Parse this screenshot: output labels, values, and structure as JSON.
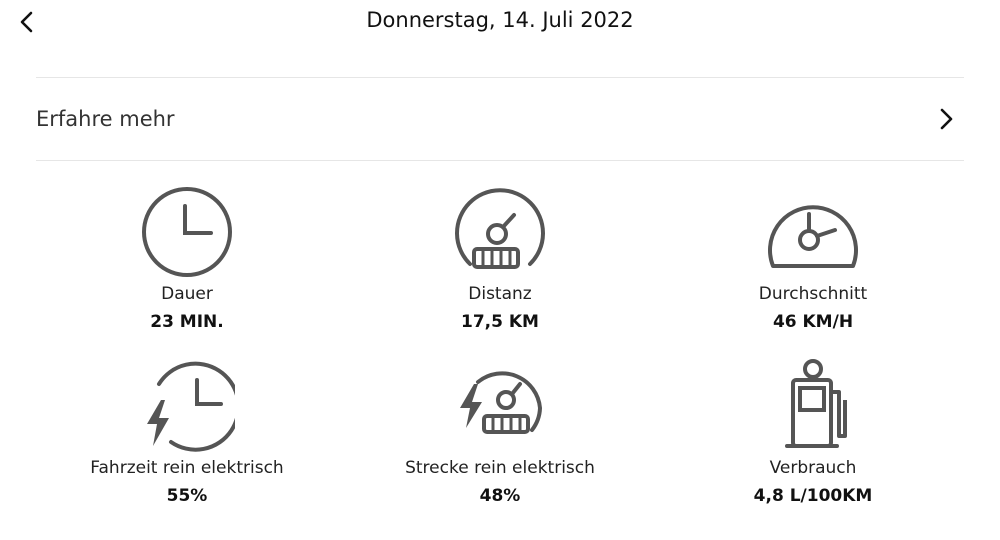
{
  "header": {
    "title": "Donnerstag, 14. Juli 2022",
    "back_icon": "chevron-left-icon"
  },
  "learn_more": {
    "label": "Erfahre mehr",
    "chevron_icon": "chevron-right-icon"
  },
  "stats": [
    {
      "label": "Dauer",
      "value": "23 MIN.",
      "icon": "clock-icon"
    },
    {
      "label": "Distanz",
      "value": "17,5 KM",
      "icon": "odometer-icon"
    },
    {
      "label": "Durchschnitt",
      "value": "46 KM/H",
      "icon": "speedometer-icon"
    },
    {
      "label": "Fahrzeit rein elektrisch",
      "value": "55%",
      "icon": "electric-clock-icon"
    },
    {
      "label": "Strecke rein elektrisch",
      "value": "48%",
      "icon": "electric-odometer-icon"
    },
    {
      "label": "Verbrauch",
      "value": "4,8 L/100KM",
      "icon": "fuel-pump-icon"
    }
  ],
  "colors": {
    "icon": "#555555",
    "divider": "#e6e6e6"
  }
}
